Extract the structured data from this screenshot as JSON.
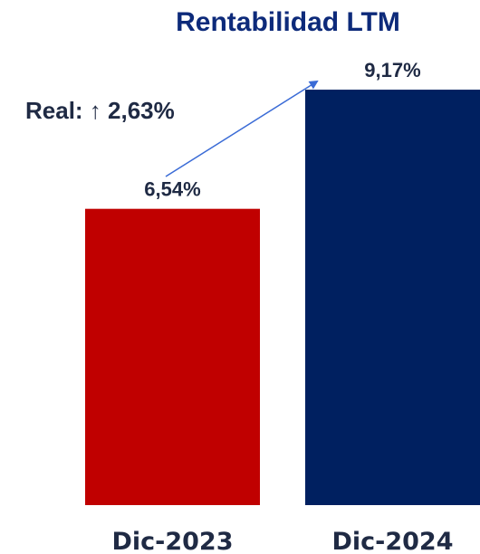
{
  "chart_data": {
    "type": "bar",
    "title": "Rentabilidad LTM",
    "categories": [
      "Dic-2023",
      "Dic-2024"
    ],
    "values": [
      6.54,
      9.17
    ],
    "data_labels": [
      "6,54%",
      "9,17%"
    ],
    "unit": "%",
    "ylim": [
      0,
      10.35
    ],
    "grid": false,
    "legend": "none",
    "annotation": {
      "text": "Real: ↑ 2,63%",
      "from_category": "Dic-2023",
      "to_category": "Dic-2024"
    },
    "colors": {
      "title": "#0d2a7a",
      "labels": "#1f2a44",
      "bars": [
        "#c00000",
        "#002060"
      ],
      "arrow": "#3a6bd6"
    }
  }
}
